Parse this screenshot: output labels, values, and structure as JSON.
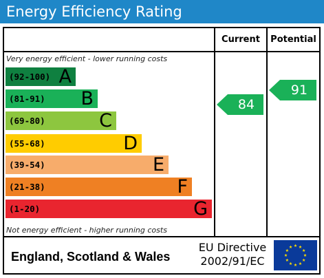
{
  "title": "Energy Efficiency Rating",
  "columns": {
    "current": "Current",
    "potential": "Potential"
  },
  "top_note": "Very energy efficient - lower running costs",
  "bottom_note": "Not energy efficient - higher running costs",
  "bands": [
    {
      "range": "(92-100)",
      "letter": "A",
      "color": "#0f8040"
    },
    {
      "range": "(81-91)",
      "letter": "B",
      "color": "#1ab158"
    },
    {
      "range": "(69-80)",
      "letter": "C",
      "color": "#8dc63f"
    },
    {
      "range": "(55-68)",
      "letter": "D",
      "color": "#ffcc00"
    },
    {
      "range": "(39-54)",
      "letter": "E",
      "color": "#f7ac6b"
    },
    {
      "range": "(21-38)",
      "letter": "F",
      "color": "#ef8023"
    },
    {
      "range": "(1-20)",
      "letter": "G",
      "color": "#e9252f"
    }
  ],
  "current_rating": {
    "value": "84",
    "band": "B",
    "color": "#1ab158"
  },
  "potential_rating": {
    "value": "91",
    "band": "B",
    "color": "#1ab158"
  },
  "footer": {
    "region": "England, Scotland & Wales",
    "directive_line1": "EU Directive",
    "directive_line2": "2002/91/EC",
    "flag_icon": "eu-flag-icon"
  },
  "colors": {
    "header_bg": "#1f87c8",
    "flag_bg": "#0a3a9a",
    "flag_stars": "#ffdd00"
  }
}
